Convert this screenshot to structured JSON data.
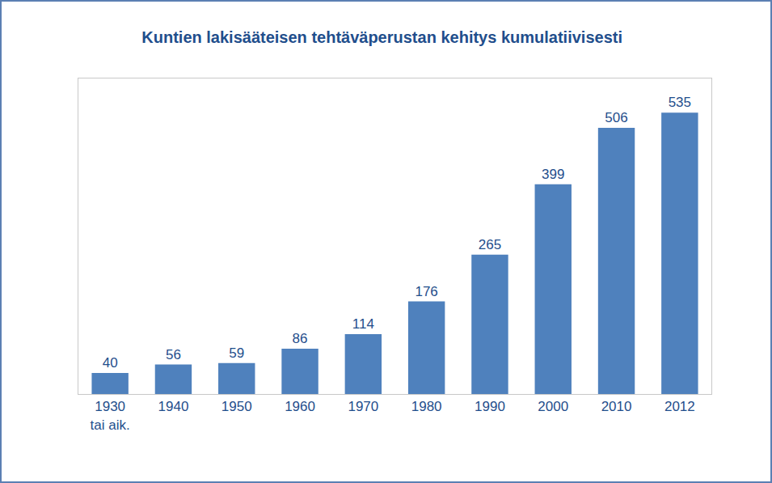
{
  "chart_data": {
    "type": "bar",
    "title": "Kuntien lakisääteisen tehtäväperustan kehitys kumulatiivisesti",
    "categories": [
      "1930\ntai aik.",
      "1940",
      "1950",
      "1960",
      "1970",
      "1980",
      "1990",
      "2000",
      "2010",
      "2012"
    ],
    "values": [
      40,
      56,
      59,
      86,
      114,
      176,
      265,
      399,
      506,
      535
    ],
    "color": "#4f81bd",
    "ylim": [
      0,
      600
    ],
    "yticks": [],
    "grid": false,
    "data_labels": true,
    "tick_labels": "x"
  }
}
